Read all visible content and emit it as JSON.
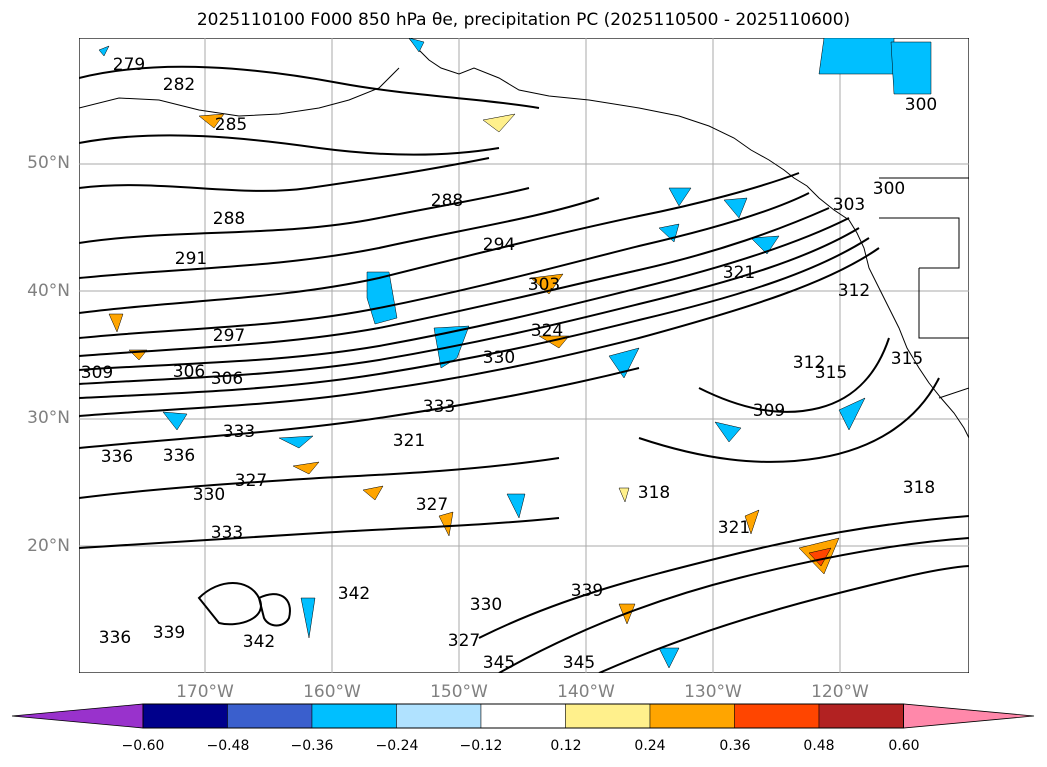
{
  "title": "2025110100 F000 850 hPa θe, precipitation PC (2025110500 - 2025110600)",
  "axes": {
    "lat_labels": [
      "50°N",
      "40°N",
      "30°N",
      "20°N"
    ],
    "lon_labels": [
      "170°W",
      "160°W",
      "150°W",
      "140°W",
      "130°W",
      "120°W"
    ]
  },
  "contour_labels": [
    "279",
    "282",
    "285",
    "288",
    "288",
    "291",
    "294",
    "297",
    "300",
    "300",
    "303",
    "303",
    "306",
    "306",
    "309",
    "309",
    "312",
    "312",
    "315",
    "315",
    "318",
    "318",
    "321",
    "321",
    "321",
    "324",
    "327",
    "327",
    "327",
    "330",
    "330",
    "330",
    "333",
    "333",
    "333",
    "336",
    "336",
    "336",
    "339",
    "339",
    "342",
    "342",
    "345",
    "345"
  ],
  "colorbar": {
    "ticks": [
      "−0.60",
      "−0.48",
      "−0.36",
      "−0.24",
      "−0.12",
      "0.12",
      "0.24",
      "0.36",
      "0.48",
      "0.60"
    ],
    "colors": [
      "#9932cc",
      "#00008b",
      "#3a5fcd",
      "#00bfff",
      "#b0e2ff",
      "#ffffff",
      "#fff08c",
      "#ffa500",
      "#ff4500",
      "#b22222",
      "#ff88aa"
    ]
  },
  "map": {
    "lat_range": [
      10,
      60
    ],
    "lon_range": [
      -180,
      -110
    ],
    "gridlines": true
  }
}
